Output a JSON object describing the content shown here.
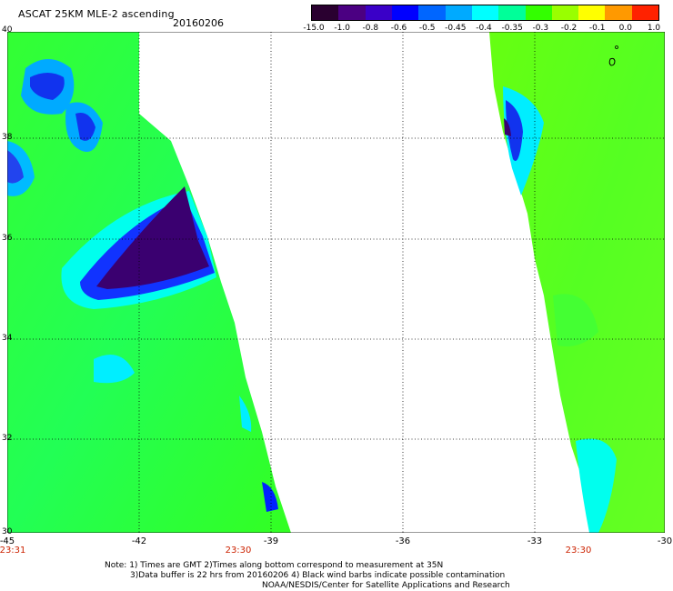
{
  "header": {
    "title": "ASCAT 25KM MLE-2 ascending",
    "date": "20160206"
  },
  "colorbar": {
    "labels": [
      "-15.0",
      "-1.0",
      "-0.8",
      "-0.6",
      "-0.5",
      "-0.45",
      "-0.4",
      "-0.35",
      "-0.3",
      "-0.2",
      "-0.1",
      "0.0",
      "1.0"
    ],
    "colors": [
      "#2a0030",
      "#4b0082",
      "#3a00c8",
      "#0000ff",
      "#0066ff",
      "#00aaff",
      "#00ffff",
      "#00ff99",
      "#33ff00",
      "#99ff00",
      "#ffff00",
      "#ff9900",
      "#ff2200"
    ]
  },
  "axes": {
    "x_ticks": [
      "-45",
      "-42",
      "-39",
      "-36",
      "-33",
      "-30"
    ],
    "y_ticks": [
      "40",
      "38",
      "36",
      "34",
      "32",
      "30"
    ]
  },
  "times": {
    "left": "23:31",
    "middle": "23:30",
    "right": "23:30"
  },
  "notes": {
    "line1": "Note: 1) Times are GMT 2)Times along bottom correspond to measurement at 35N",
    "line2": "3)Data buffer is 22 hrs from 20160206 4) Black wind barbs indicate possible contamination",
    "line3": "NOAA/NESDIS/Center for Satellite Applications and Research"
  }
}
